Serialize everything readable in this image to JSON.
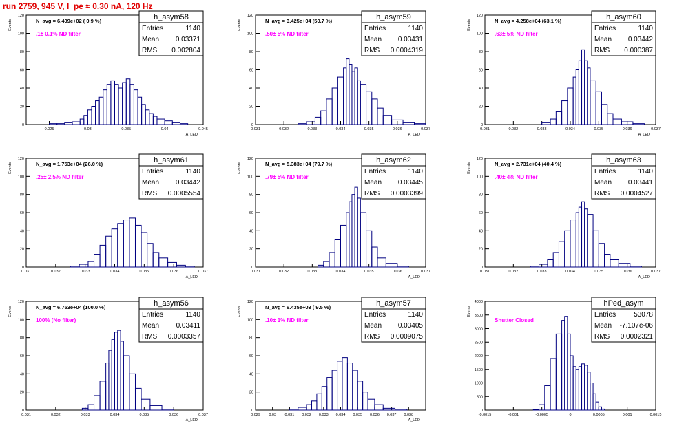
{
  "header": {
    "title": "run 2759,   945 V, I_pe ≈ 0.30 nA, 120 Hz"
  },
  "colors": {
    "histogram": "#000080",
    "annotation": "#ff00ff",
    "title": "#e00000",
    "frame": "#000000"
  },
  "chart_data": [
    {
      "type": "bar",
      "title": "h_asym58",
      "subtitle": "N_avg = 6.409e+02 ( 0.9 %)",
      "annotation": ".1± 0.1% ND filter",
      "ylabel": "Events",
      "xlabel": "A_LED",
      "stats": [
        {
          "label": "Entries",
          "value": "1140"
        },
        {
          "label": "Mean",
          "value": "0.03371"
        },
        {
          "label": "RMS",
          "value": "0.002804"
        }
      ],
      "xlim": [
        0.022,
        0.045
      ],
      "ylim": [
        0,
        120
      ],
      "xticks": [
        "0.025",
        "0.03",
        "0.035",
        "0.04",
        "0.045"
      ],
      "xtick_values": [
        0.025,
        0.03,
        0.035,
        0.04,
        0.045
      ],
      "yticks": [
        "0",
        "20",
        "40",
        "60",
        "80",
        "100",
        "120"
      ],
      "ytick_values": [
        0,
        20,
        40,
        60,
        80,
        100,
        120
      ],
      "bins": [
        [
          0.025,
          1
        ],
        [
          0.026,
          1
        ],
        [
          0.027,
          2
        ],
        [
          0.028,
          3
        ],
        [
          0.029,
          6
        ],
        [
          0.0295,
          10
        ],
        [
          0.03,
          16
        ],
        [
          0.0305,
          20
        ],
        [
          0.031,
          26
        ],
        [
          0.0315,
          30
        ],
        [
          0.032,
          38
        ],
        [
          0.0325,
          44
        ],
        [
          0.033,
          48
        ],
        [
          0.0335,
          44
        ],
        [
          0.034,
          40
        ],
        [
          0.0345,
          46
        ],
        [
          0.035,
          50
        ],
        [
          0.0355,
          44
        ],
        [
          0.036,
          38
        ],
        [
          0.0365,
          30
        ],
        [
          0.037,
          22
        ],
        [
          0.0375,
          16
        ],
        [
          0.038,
          12
        ],
        [
          0.0385,
          9
        ],
        [
          0.039,
          6
        ],
        [
          0.04,
          4
        ],
        [
          0.041,
          2
        ],
        [
          0.042,
          1
        ]
      ]
    },
    {
      "type": "bar",
      "title": "h_asym59",
      "subtitle": "N_avg = 3.425e+04 (50.7 %)",
      "annotation": ".50± 5% ND filter",
      "ylabel": "Events",
      "xlabel": "A_LED",
      "stats": [
        {
          "label": "Entries",
          "value": "1140"
        },
        {
          "label": "Mean",
          "value": "0.03431"
        },
        {
          "label": "RMS",
          "value": "0.0004319"
        }
      ],
      "xlim": [
        0.031,
        0.037
      ],
      "ylim": [
        0,
        120
      ],
      "xticks": [
        "0.031",
        "0.032",
        "0.033",
        "0.034",
        "0.035",
        "0.036",
        "0.037"
      ],
      "xtick_values": [
        0.031,
        0.032,
        0.033,
        0.034,
        0.035,
        0.036,
        0.037
      ],
      "yticks": [
        "0",
        "20",
        "40",
        "60",
        "80",
        "100",
        "120"
      ],
      "ytick_values": [
        0,
        20,
        40,
        60,
        80,
        100,
        120
      ],
      "bins": [
        [
          0.0325,
          1
        ],
        [
          0.0328,
          3
        ],
        [
          0.0331,
          8
        ],
        [
          0.0333,
          15
        ],
        [
          0.0335,
          28
        ],
        [
          0.0337,
          40
        ],
        [
          0.0339,
          52
        ],
        [
          0.0341,
          62
        ],
        [
          0.0342,
          72
        ],
        [
          0.0343,
          66
        ],
        [
          0.0344,
          58
        ],
        [
          0.0345,
          62
        ],
        [
          0.0346,
          48
        ],
        [
          0.0347,
          44
        ],
        [
          0.0349,
          36
        ],
        [
          0.0351,
          28
        ],
        [
          0.0353,
          18
        ],
        [
          0.0355,
          10
        ],
        [
          0.0358,
          5
        ],
        [
          0.0362,
          2
        ],
        [
          0.0366,
          1
        ]
      ]
    },
    {
      "type": "bar",
      "title": "h_asym60",
      "subtitle": "N_avg = 4.258e+04 (63.1 %)",
      "annotation": ".63± 5% ND filter",
      "ylabel": "Events",
      "xlabel": "A_LED",
      "stats": [
        {
          "label": "Entries",
          "value": "1140"
        },
        {
          "label": "Mean",
          "value": "0.03442"
        },
        {
          "label": "RMS",
          "value": "0.000387"
        }
      ],
      "xlim": [
        0.031,
        0.037
      ],
      "ylim": [
        0,
        120
      ],
      "xticks": [
        "0.031",
        "0.032",
        "0.033",
        "0.034",
        "0.035",
        "0.036",
        "0.037"
      ],
      "xtick_values": [
        0.031,
        0.032,
        0.033,
        0.034,
        0.035,
        0.036,
        0.037
      ],
      "yticks": [
        "0",
        "20",
        "40",
        "60",
        "80",
        "100",
        "120"
      ],
      "ytick_values": [
        0,
        20,
        40,
        60,
        80,
        100,
        120
      ],
      "bins": [
        [
          0.033,
          2
        ],
        [
          0.0333,
          6
        ],
        [
          0.0335,
          14
        ],
        [
          0.0337,
          26
        ],
        [
          0.0339,
          40
        ],
        [
          0.0341,
          52
        ],
        [
          0.0342,
          60
        ],
        [
          0.0343,
          70
        ],
        [
          0.0344,
          82
        ],
        [
          0.0345,
          70
        ],
        [
          0.0346,
          62
        ],
        [
          0.0347,
          48
        ],
        [
          0.0349,
          36
        ],
        [
          0.0351,
          22
        ],
        [
          0.0353,
          12
        ],
        [
          0.0355,
          6
        ],
        [
          0.0358,
          3
        ],
        [
          0.0362,
          1
        ]
      ]
    },
    {
      "type": "bar",
      "title": "h_asym61",
      "subtitle": "N_avg = 1.753e+04 (26.0 %)",
      "annotation": ".25± 2.5% ND filter",
      "ylabel": "Events",
      "xlabel": "A_LED",
      "stats": [
        {
          "label": "Entries",
          "value": "1140"
        },
        {
          "label": "Mean",
          "value": "0.03442"
        },
        {
          "label": "RMS",
          "value": "0.0005554"
        }
      ],
      "xlim": [
        0.031,
        0.037
      ],
      "ylim": [
        0,
        120
      ],
      "xticks": [
        "0.031",
        "0.032",
        "0.033",
        "0.034",
        "0.035",
        "0.036",
        "0.037"
      ],
      "xtick_values": [
        0.031,
        0.032,
        0.033,
        0.034,
        0.035,
        0.036,
        0.037
      ],
      "yticks": [
        "0",
        "20",
        "40",
        "60",
        "80",
        "100",
        "120"
      ],
      "ytick_values": [
        0,
        20,
        40,
        60,
        80,
        100,
        120
      ],
      "bins": [
        [
          0.0325,
          1
        ],
        [
          0.0328,
          3
        ],
        [
          0.0331,
          6
        ],
        [
          0.0333,
          14
        ],
        [
          0.0335,
          24
        ],
        [
          0.0337,
          34
        ],
        [
          0.0339,
          42
        ],
        [
          0.0341,
          48
        ],
        [
          0.0343,
          52
        ],
        [
          0.0345,
          54
        ],
        [
          0.0347,
          46
        ],
        [
          0.0349,
          38
        ],
        [
          0.0351,
          26
        ],
        [
          0.0353,
          16
        ],
        [
          0.0355,
          10
        ],
        [
          0.0358,
          5
        ],
        [
          0.0361,
          2
        ],
        [
          0.0364,
          1
        ]
      ]
    },
    {
      "type": "bar",
      "title": "h_asym62",
      "subtitle": "N_avg = 5.383e+04 (79.7 %)",
      "annotation": ".79± 5% ND filter",
      "ylabel": "Events",
      "xlabel": "A_LED",
      "stats": [
        {
          "label": "Entries",
          "value": "1140"
        },
        {
          "label": "Mean",
          "value": "0.03445"
        },
        {
          "label": "RMS",
          "value": "0.0003399"
        }
      ],
      "xlim": [
        0.031,
        0.037
      ],
      "ylim": [
        0,
        120
      ],
      "xticks": [
        "0.031",
        "0.032",
        "0.033",
        "0.034",
        "0.035",
        "0.036",
        "0.037"
      ],
      "xtick_values": [
        0.031,
        0.032,
        0.033,
        0.034,
        0.035,
        0.036,
        0.037
      ],
      "yticks": [
        "0",
        "20",
        "40",
        "60",
        "80",
        "100",
        "120"
      ],
      "ytick_values": [
        0,
        20,
        40,
        60,
        80,
        100,
        120
      ],
      "bins": [
        [
          0.0332,
          2
        ],
        [
          0.0334,
          6
        ],
        [
          0.0336,
          16
        ],
        [
          0.0338,
          30
        ],
        [
          0.034,
          46
        ],
        [
          0.0342,
          60
        ],
        [
          0.0343,
          72
        ],
        [
          0.0344,
          80
        ],
        [
          0.0345,
          88
        ],
        [
          0.0346,
          76
        ],
        [
          0.0347,
          60
        ],
        [
          0.0349,
          40
        ],
        [
          0.0351,
          22
        ],
        [
          0.0353,
          10
        ],
        [
          0.0356,
          4
        ],
        [
          0.036,
          1
        ]
      ]
    },
    {
      "type": "bar",
      "title": "h_asym63",
      "subtitle": "N_avg = 2.731e+04 (40.4 %)",
      "annotation": ".40± 4% ND filter",
      "ylabel": "Events",
      "xlabel": "A_LED",
      "stats": [
        {
          "label": "Entries",
          "value": "1140"
        },
        {
          "label": "Mean",
          "value": "0.03441"
        },
        {
          "label": "RMS",
          "value": "0.0004527"
        }
      ],
      "xlim": [
        0.031,
        0.037
      ],
      "ylim": [
        0,
        120
      ],
      "xticks": [
        "0.031",
        "0.032",
        "0.033",
        "0.034",
        "0.035",
        "0.036",
        "0.037"
      ],
      "xtick_values": [
        0.031,
        0.032,
        0.033,
        0.034,
        0.035,
        0.036,
        0.037
      ],
      "yticks": [
        "0",
        "20",
        "40",
        "60",
        "80",
        "100",
        "120"
      ],
      "ytick_values": [
        0,
        20,
        40,
        60,
        80,
        100,
        120
      ],
      "bins": [
        [
          0.0326,
          1
        ],
        [
          0.0329,
          3
        ],
        [
          0.0332,
          8
        ],
        [
          0.0334,
          16
        ],
        [
          0.0336,
          28
        ],
        [
          0.0338,
          40
        ],
        [
          0.034,
          52
        ],
        [
          0.0342,
          60
        ],
        [
          0.0343,
          66
        ],
        [
          0.0344,
          72
        ],
        [
          0.0345,
          64
        ],
        [
          0.0346,
          58
        ],
        [
          0.0348,
          40
        ],
        [
          0.035,
          26
        ],
        [
          0.0352,
          14
        ],
        [
          0.0354,
          8
        ],
        [
          0.0357,
          4
        ],
        [
          0.0361,
          1
        ]
      ]
    },
    {
      "type": "bar",
      "title": "h_asym56",
      "subtitle": "N_avg = 6.753e+04 (100.0 %)",
      "annotation": "100% (No filter)",
      "ylabel": "Events",
      "xlabel": "A_LED",
      "stats": [
        {
          "label": "Entries",
          "value": "1140"
        },
        {
          "label": "Mean",
          "value": "0.03411"
        },
        {
          "label": "RMS",
          "value": "0.0003357"
        }
      ],
      "xlim": [
        0.031,
        0.037
      ],
      "ylim": [
        0,
        120
      ],
      "xticks": [
        "0.031",
        "0.032",
        "0.033",
        "0.034",
        "0.035",
        "0.036",
        "0.037"
      ],
      "xtick_values": [
        0.031,
        0.032,
        0.033,
        0.034,
        0.035,
        0.036,
        0.037
      ],
      "yticks": [
        "0",
        "20",
        "40",
        "60",
        "80",
        "100",
        "120"
      ],
      "ytick_values": [
        0,
        20,
        40,
        60,
        80,
        100,
        120
      ],
      "bins": [
        [
          0.0329,
          2
        ],
        [
          0.0331,
          6
        ],
        [
          0.0333,
          16
        ],
        [
          0.0335,
          32
        ],
        [
          0.0337,
          52
        ],
        [
          0.0338,
          66
        ],
        [
          0.0339,
          78
        ],
        [
          0.034,
          86
        ],
        [
          0.0341,
          88
        ],
        [
          0.0342,
          76
        ],
        [
          0.0343,
          60
        ],
        [
          0.0345,
          40
        ],
        [
          0.0347,
          24
        ],
        [
          0.0349,
          12
        ],
        [
          0.0352,
          5
        ],
        [
          0.0356,
          1
        ]
      ]
    },
    {
      "type": "bar",
      "title": "h_asym57",
      "subtitle": "N_avg = 6.435e+03 ( 9.5 %)",
      "annotation": ".10± 1% ND filter",
      "ylabel": "Events",
      "xlabel": "A_LED",
      "stats": [
        {
          "label": "Entries",
          "value": "1140"
        },
        {
          "label": "Mean",
          "value": "0.03405"
        },
        {
          "label": "RMS",
          "value": "0.0009075"
        }
      ],
      "xlim": [
        0.029,
        0.039
      ],
      "ylim": [
        0,
        120
      ],
      "xticks": [
        "0.029",
        "0.03",
        "0.031",
        "0.032",
        "0.033",
        "0.034",
        "0.035",
        "0.036",
        "0.037",
        "0.038"
      ],
      "xtick_values": [
        0.029,
        0.03,
        0.031,
        0.032,
        0.033,
        0.034,
        0.035,
        0.036,
        0.037,
        0.038
      ],
      "yticks": [
        "0",
        "20",
        "40",
        "60",
        "80",
        "100",
        "120"
      ],
      "ytick_values": [
        0,
        20,
        40,
        60,
        80,
        100,
        120
      ],
      "bins": [
        [
          0.031,
          1
        ],
        [
          0.0315,
          3
        ],
        [
          0.032,
          6
        ],
        [
          0.0323,
          10
        ],
        [
          0.0326,
          18
        ],
        [
          0.0329,
          26
        ],
        [
          0.0332,
          36
        ],
        [
          0.0335,
          44
        ],
        [
          0.0338,
          54
        ],
        [
          0.0341,
          58
        ],
        [
          0.0344,
          52
        ],
        [
          0.0347,
          44
        ],
        [
          0.035,
          32
        ],
        [
          0.0353,
          20
        ],
        [
          0.0356,
          12
        ],
        [
          0.036,
          6
        ],
        [
          0.0365,
          2
        ],
        [
          0.0372,
          1
        ]
      ]
    },
    {
      "type": "bar",
      "title": "hPed_asym",
      "subtitle": "",
      "annotation": "Shutter Closed",
      "ylabel": "Events",
      "xlabel": "",
      "stats": [
        {
          "label": "Entries",
          "value": "53078"
        },
        {
          "label": "Mean",
          "value": "-7.107e-06"
        },
        {
          "label": "RMS",
          "value": "0.0002321"
        }
      ],
      "xlim": [
        -0.0015,
        0.0015
      ],
      "ylim": [
        0,
        4000
      ],
      "xticks": [
        "-0.0015",
        "-0.001",
        "-0.0005",
        "0",
        "0.0005",
        "0.001",
        "0.0015"
      ],
      "xtick_values": [
        -0.0015,
        -0.001,
        -0.0005,
        0,
        0.0005,
        0.001,
        0.0015
      ],
      "yticks": [
        "0",
        "500",
        "1000",
        "1500",
        "2000",
        "2500",
        "3000",
        "3500",
        "4000"
      ],
      "ytick_values": [
        0,
        500,
        1000,
        1500,
        2000,
        2500,
        3000,
        3500,
        4000
      ],
      "bins": [
        [
          -0.00065,
          20
        ],
        [
          -0.00055,
          200
        ],
        [
          -0.00045,
          900
        ],
        [
          -0.00035,
          1900
        ],
        [
          -0.00025,
          2800
        ],
        [
          -0.00015,
          3300
        ],
        [
          -0.0001,
          3450
        ],
        [
          -5e-05,
          2800
        ],
        [
          0.0,
          2000
        ],
        [
          5e-05,
          1600
        ],
        [
          0.0001,
          1500
        ],
        [
          0.00015,
          1600
        ],
        [
          0.0002,
          1700
        ],
        [
          0.00025,
          1650
        ],
        [
          0.0003,
          1400
        ],
        [
          0.00035,
          1000
        ],
        [
          0.0004,
          600
        ],
        [
          0.00045,
          300
        ],
        [
          0.0005,
          120
        ],
        [
          0.00055,
          40
        ]
      ]
    }
  ]
}
